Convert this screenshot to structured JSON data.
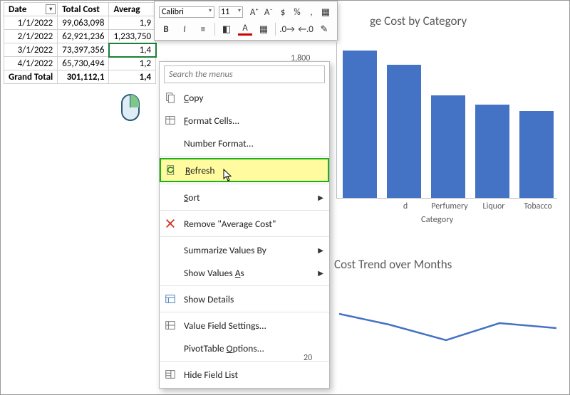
{
  "table": {
    "headers": [
      "Date",
      "Total Cost",
      "Averag"
    ],
    "rows": [
      {
        "date": "1/1/2022",
        "total": "99,063,098",
        "avg": "1,9"
      },
      {
        "date": "2/1/2022",
        "total": "62,921,236",
        "avg": "1,233,750"
      },
      {
        "date": "3/1/2022",
        "total": "73,397,356",
        "avg": "1,4"
      },
      {
        "date": "4/1/2022",
        "total": "65,730,494",
        "avg": "1,2"
      }
    ],
    "grand": {
      "label": "Grand Total",
      "total": "301,112,1",
      "avg": "1,4"
    }
  },
  "mini_toolbar": {
    "font": "Calibri",
    "size": "11",
    "buttons_row1": [
      {
        "name": "increase-font-icon",
        "glyph": "A⁺"
      },
      {
        "name": "decrease-font-icon",
        "glyph": "A⁻"
      },
      {
        "name": "accounting-icon",
        "glyph": "$"
      },
      {
        "name": "percent-icon",
        "glyph": "%"
      },
      {
        "name": "comma-icon",
        "glyph": ","
      },
      {
        "name": "table-format-icon",
        "glyph": "▦"
      }
    ],
    "buttons_row2": [
      {
        "name": "bold-icon",
        "glyph": "B",
        "bold": true
      },
      {
        "name": "italic-icon",
        "glyph": "I",
        "italic": true
      },
      {
        "name": "align-icon",
        "glyph": "≡"
      },
      {
        "name": "fill-color-icon",
        "glyph": "◧",
        "color": "#555"
      },
      {
        "name": "font-color-icon",
        "glyph": "A",
        "underline_color": "#d00000"
      },
      {
        "name": "borders-icon",
        "glyph": "▦"
      },
      {
        "name": "increase-decimal-icon",
        "glyph": ".0→"
      },
      {
        "name": "decrease-decimal-icon",
        "glyph": "←.0"
      },
      {
        "name": "format-painter-icon",
        "glyph": "✎"
      }
    ]
  },
  "context_menu": {
    "search_placeholder": "Search the menus",
    "items": [
      {
        "icon": "copy",
        "label": "Copy",
        "u": "C"
      },
      {
        "icon": "format-cells",
        "label": "Format Cells...",
        "u": "F"
      },
      {
        "icon": "",
        "label": "Number Format..."
      },
      {
        "sep": true
      },
      {
        "icon": "refresh",
        "label": "Refresh",
        "u": "R",
        "highlight": true
      },
      {
        "sep": true
      },
      {
        "icon": "",
        "label": "Sort",
        "u": "S",
        "sub": true
      },
      {
        "sep": true
      },
      {
        "icon": "remove",
        "label": "Remove \"Average Cost\""
      },
      {
        "sep": true
      },
      {
        "icon": "",
        "label": "Summarize Values By",
        "u": "M",
        "sub": true
      },
      {
        "icon": "",
        "label": "Show Values As",
        "u": "A",
        "sub": true
      },
      {
        "sep": true
      },
      {
        "icon": "details",
        "label": "Show Details",
        "u": "E"
      },
      {
        "sep": true
      },
      {
        "icon": "settings",
        "label": "Value Field Settings...",
        "u": "N"
      },
      {
        "icon": "",
        "label": "PivotTable Options...",
        "u": "O"
      },
      {
        "sep": true
      },
      {
        "icon": "hide",
        "label": "Hide Field List",
        "u": "D"
      }
    ]
  },
  "charts": {
    "bar": {
      "title_suffix": "ge Cost by Category",
      "y_tick": "1,800",
      "categories": [
        "",
        "d",
        "Perfumery",
        "Liquor",
        "Tobacco"
      ],
      "heights_pct": [
        0.95,
        0.86,
        0.66,
        0.6,
        0.56
      ],
      "bar_color": "#4472c4",
      "x_title": "Category"
    },
    "line": {
      "title_suffix": "Cost Trend over Months",
      "points": [
        [
          0,
          35
        ],
        [
          70,
          50
        ],
        [
          150,
          72
        ],
        [
          225,
          48
        ],
        [
          305,
          55
        ]
      ],
      "color": "#4472c4",
      "y_tick": "20"
    }
  }
}
